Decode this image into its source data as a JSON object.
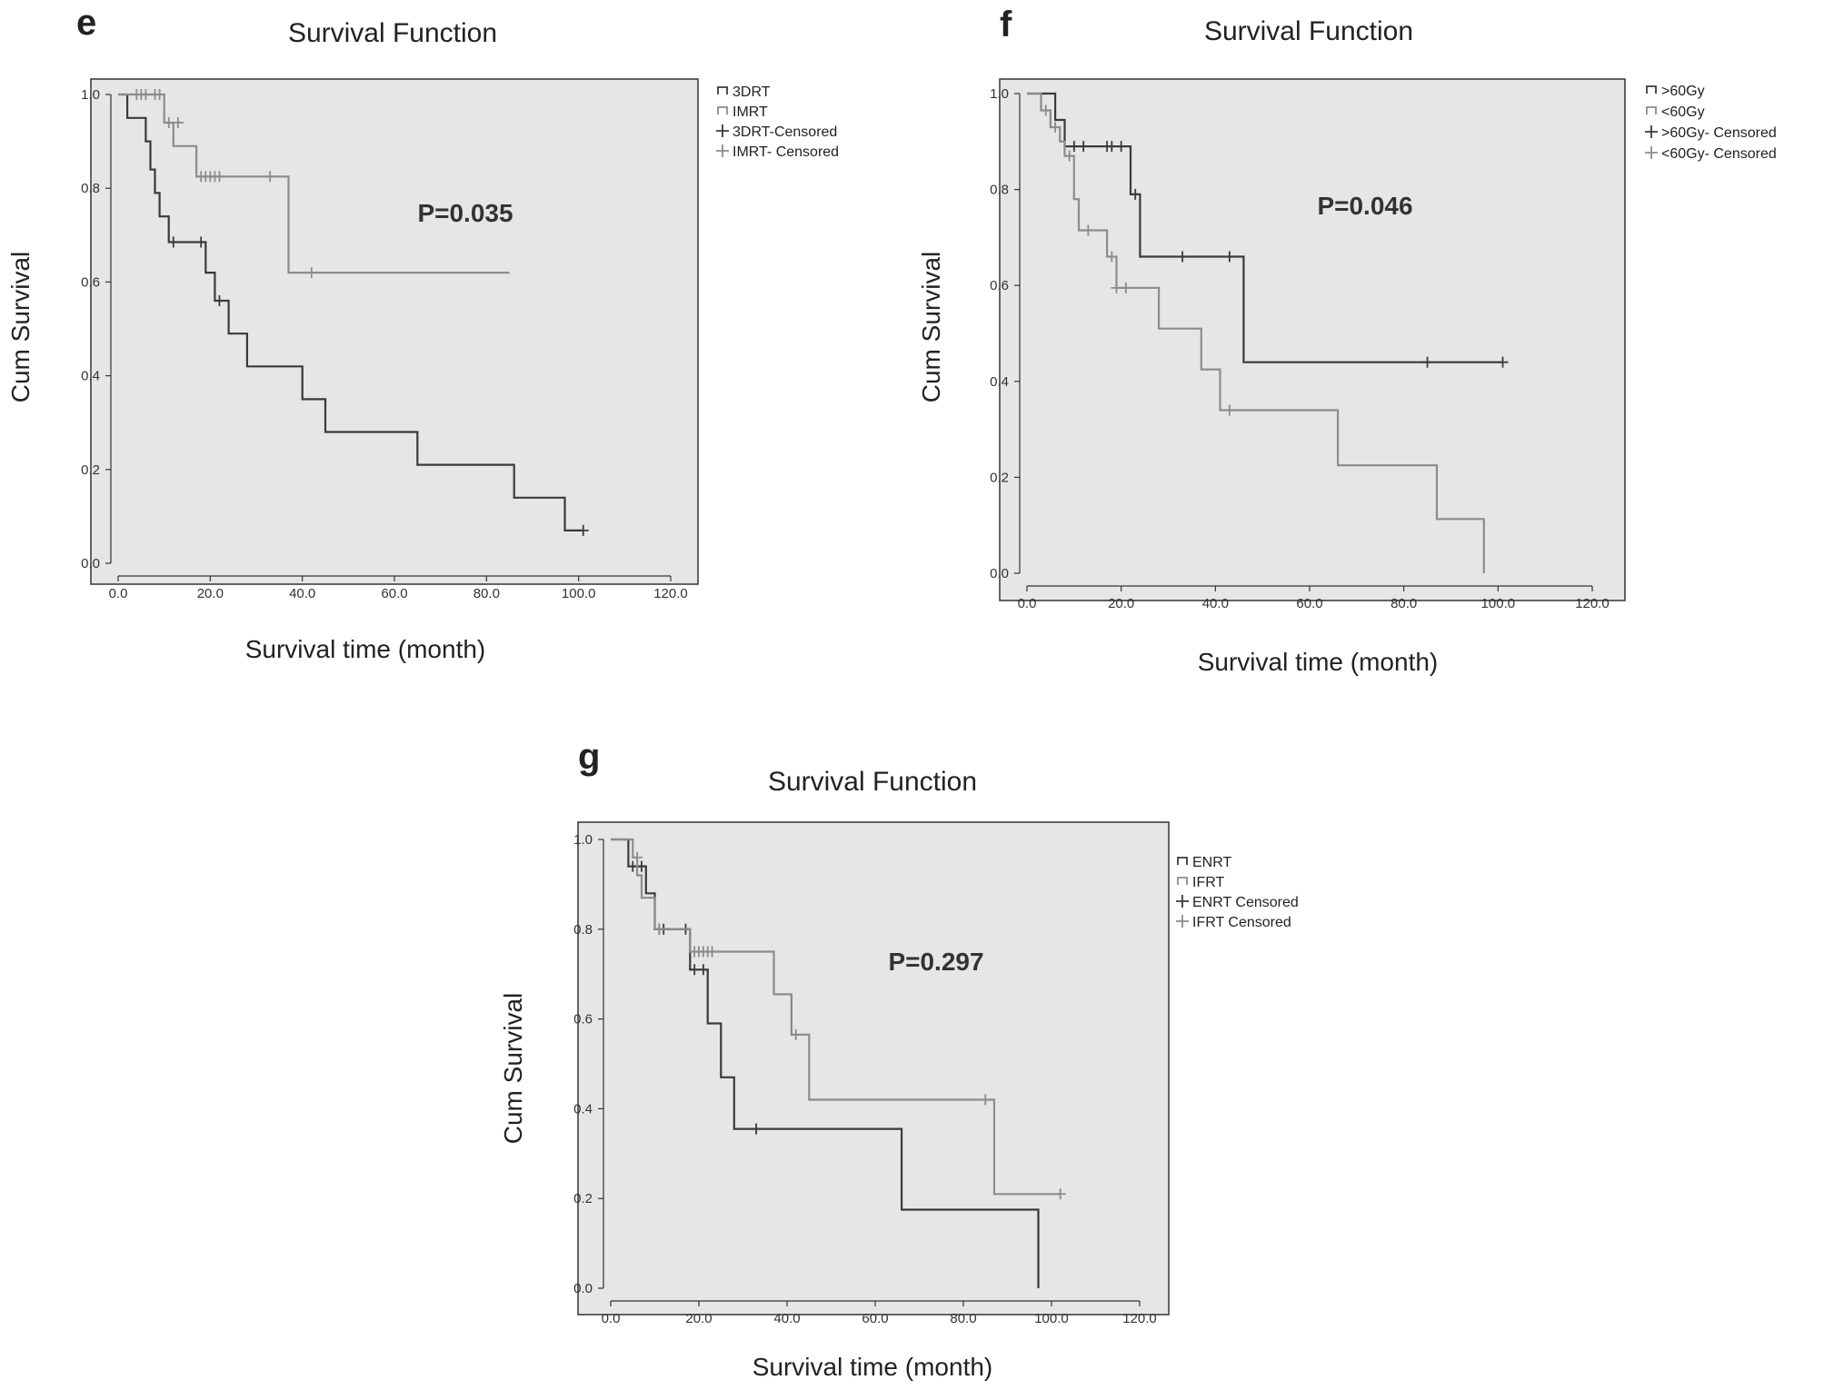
{
  "chart_data": [
    {
      "type": "line",
      "subtype": "kaplan-meier",
      "panel_label": "e",
      "title": "Survival Function",
      "xlabel": "Survival time (month)",
      "ylabel": "Cum Survival",
      "xlim": [
        0,
        120
      ],
      "ylim": [
        0,
        1
      ],
      "x_ticks": [
        "0.0",
        "20.0",
        "40.0",
        "60.0",
        "80.0",
        "100.0",
        "120.0"
      ],
      "y_ticks": [
        "0.0",
        "0.2",
        "0.4",
        "0.6",
        "0.8",
        "1.0"
      ],
      "annotation": "P=0.035",
      "legend": [
        "3DRT",
        "IMRT",
        "3DRT-Censored",
        "IMRT- Censored"
      ],
      "series": [
        {
          "name": "3DRT",
          "color": "#3a3a3a",
          "steps": [
            [
              0,
              1.0
            ],
            [
              2,
              1.0
            ],
            [
              2,
              0.95
            ],
            [
              6,
              0.95
            ],
            [
              6,
              0.9
            ],
            [
              7,
              0.9
            ],
            [
              7,
              0.84
            ],
            [
              8,
              0.84
            ],
            [
              8,
              0.79
            ],
            [
              9,
              0.79
            ],
            [
              9,
              0.74
            ],
            [
              11,
              0.74
            ],
            [
              11,
              0.685
            ],
            [
              19,
              0.685
            ],
            [
              19,
              0.62
            ],
            [
              21,
              0.62
            ],
            [
              21,
              0.56
            ],
            [
              24,
              0.56
            ],
            [
              24,
              0.49
            ],
            [
              28,
              0.49
            ],
            [
              28,
              0.42
            ],
            [
              40,
              0.42
            ],
            [
              40,
              0.35
            ],
            [
              45,
              0.35
            ],
            [
              45,
              0.28
            ],
            [
              65,
              0.28
            ],
            [
              65,
              0.21
            ],
            [
              86,
              0.21
            ],
            [
              86,
              0.14
            ],
            [
              97,
              0.14
            ],
            [
              97,
              0.07
            ],
            [
              101,
              0.07
            ]
          ],
          "censored": [
            [
              12,
              0.685
            ],
            [
              18,
              0.685
            ],
            [
              22,
              0.56
            ],
            [
              101,
              0.07
            ]
          ]
        },
        {
          "name": "IMRT",
          "color": "#8c8c8c",
          "steps": [
            [
              0,
              1.0
            ],
            [
              10,
              1.0
            ],
            [
              10,
              0.94
            ],
            [
              12,
              0.94
            ],
            [
              12,
              0.89
            ],
            [
              17,
              0.89
            ],
            [
              17,
              0.825
            ],
            [
              37,
              0.825
            ],
            [
              37,
              0.62
            ],
            [
              85,
              0.62
            ]
          ],
          "censored": [
            [
              4,
              1.0
            ],
            [
              5,
              1.0
            ],
            [
              6,
              1.0
            ],
            [
              8,
              1.0
            ],
            [
              9,
              1.0
            ],
            [
              11,
              0.94
            ],
            [
              13,
              0.94
            ],
            [
              18,
              0.825
            ],
            [
              19,
              0.825
            ],
            [
              20,
              0.825
            ],
            [
              21,
              0.825
            ],
            [
              22,
              0.825
            ],
            [
              33,
              0.825
            ],
            [
              42,
              0.62
            ]
          ]
        }
      ]
    },
    {
      "type": "line",
      "subtype": "kaplan-meier",
      "panel_label": "f",
      "title": "Survival Function",
      "xlabel": "Survival time (month)",
      "ylabel": "Cum Survival",
      "xlim": [
        0,
        120
      ],
      "ylim": [
        0,
        1
      ],
      "x_ticks": [
        "0.0",
        "20.0",
        "40.0",
        "60.0",
        "80.0",
        "100.0",
        "120.0"
      ],
      "y_ticks": [
        "0.0",
        "0.2",
        "0.4",
        "0.6",
        "0.8",
        "1.0"
      ],
      "annotation": "P=0.046",
      "legend": [
        ">60Gy",
        "<60Gy",
        ">60Gy- Censored",
        "<60Gy- Censored"
      ],
      "series": [
        {
          "name": ">60Gy",
          "color": "#3a3a3a",
          "steps": [
            [
              0,
              1.0
            ],
            [
              6,
              1.0
            ],
            [
              6,
              0.945
            ],
            [
              8,
              0.945
            ],
            [
              8,
              0.89
            ],
            [
              22,
              0.89
            ],
            [
              22,
              0.79
            ],
            [
              24,
              0.79
            ],
            [
              24,
              0.66
            ],
            [
              46,
              0.66
            ],
            [
              46,
              0.44
            ],
            [
              101,
              0.44
            ]
          ],
          "censored": [
            [
              10,
              0.89
            ],
            [
              12,
              0.89
            ],
            [
              17,
              0.89
            ],
            [
              18,
              0.89
            ],
            [
              20,
              0.89
            ],
            [
              23,
              0.79
            ],
            [
              33,
              0.66
            ],
            [
              43,
              0.66
            ],
            [
              85,
              0.44
            ],
            [
              101,
              0.44
            ]
          ]
        },
        {
          "name": "<60Gy",
          "color": "#8c8c8c",
          "steps": [
            [
              0,
              1.0
            ],
            [
              3,
              1.0
            ],
            [
              3,
              0.965
            ],
            [
              5,
              0.965
            ],
            [
              5,
              0.93
            ],
            [
              7,
              0.93
            ],
            [
              7,
              0.9
            ],
            [
              8,
              0.9
            ],
            [
              8,
              0.87
            ],
            [
              10,
              0.87
            ],
            [
              10,
              0.78
            ],
            [
              11,
              0.78
            ],
            [
              11,
              0.715
            ],
            [
              17,
              0.715
            ],
            [
              17,
              0.66
            ],
            [
              19,
              0.66
            ],
            [
              19,
              0.595
            ],
            [
              28,
              0.595
            ],
            [
              28,
              0.51
            ],
            [
              37,
              0.51
            ],
            [
              37,
              0.425
            ],
            [
              41,
              0.425
            ],
            [
              41,
              0.34
            ],
            [
              66,
              0.34
            ],
            [
              66,
              0.225
            ],
            [
              87,
              0.225
            ],
            [
              87,
              0.113
            ],
            [
              97,
              0.113
            ],
            [
              97,
              0.0
            ]
          ],
          "censored": [
            [
              4,
              0.965
            ],
            [
              6,
              0.93
            ],
            [
              9,
              0.87
            ],
            [
              13,
              0.715
            ],
            [
              18,
              0.66
            ],
            [
              19,
              0.595
            ],
            [
              21,
              0.595
            ],
            [
              43,
              0.34
            ]
          ]
        }
      ]
    },
    {
      "type": "line",
      "subtype": "kaplan-meier",
      "panel_label": "g",
      "title": "Survival Function",
      "xlabel": "Survival time (month)",
      "ylabel": "Cum Survival",
      "xlim": [
        0,
        120
      ],
      "ylim": [
        0,
        1
      ],
      "x_ticks": [
        "0.0",
        "20.0",
        "40.0",
        "60.0",
        "80.0",
        "100.0",
        "120.0"
      ],
      "y_ticks": [
        "0.0",
        "0.2",
        "0.4",
        "0.6",
        "0.8",
        "1.0"
      ],
      "annotation": "P=0.297",
      "legend": [
        "ENRT",
        "IFRT",
        "ENRT Censored",
        "IFRT Censored"
      ],
      "series": [
        {
          "name": "ENRT",
          "color": "#3a3a3a",
          "steps": [
            [
              0,
              1.0
            ],
            [
              4,
              1.0
            ],
            [
              4,
              0.94
            ],
            [
              8,
              0.94
            ],
            [
              8,
              0.88
            ],
            [
              10,
              0.88
            ],
            [
              10,
              0.8
            ],
            [
              18,
              0.8
            ],
            [
              18,
              0.71
            ],
            [
              22,
              0.71
            ],
            [
              22,
              0.59
            ],
            [
              25,
              0.59
            ],
            [
              25,
              0.47
            ],
            [
              28,
              0.47
            ],
            [
              28,
              0.355
            ],
            [
              66,
              0.355
            ],
            [
              66,
              0.175
            ],
            [
              97,
              0.175
            ],
            [
              97,
              0.0
            ]
          ],
          "censored": [
            [
              5,
              0.94
            ],
            [
              7,
              0.94
            ],
            [
              11,
              0.8
            ],
            [
              12,
              0.8
            ],
            [
              17,
              0.8
            ],
            [
              19,
              0.71
            ],
            [
              21,
              0.71
            ],
            [
              33,
              0.355
            ]
          ]
        },
        {
          "name": "IFRT",
          "color": "#8c8c8c",
          "steps": [
            [
              0,
              1.0
            ],
            [
              5,
              1.0
            ],
            [
              5,
              0.96
            ],
            [
              6,
              0.96
            ],
            [
              6,
              0.92
            ],
            [
              7,
              0.92
            ],
            [
              7,
              0.87
            ],
            [
              10,
              0.87
            ],
            [
              10,
              0.8
            ],
            [
              18,
              0.8
            ],
            [
              18,
              0.75
            ],
            [
              37,
              0.75
            ],
            [
              37,
              0.655
            ],
            [
              41,
              0.655
            ],
            [
              41,
              0.565
            ],
            [
              45,
              0.565
            ],
            [
              45,
              0.42
            ],
            [
              87,
              0.42
            ],
            [
              87,
              0.21
            ],
            [
              102,
              0.21
            ]
          ],
          "censored": [
            [
              6,
              0.96
            ],
            [
              11,
              0.8
            ],
            [
              19,
              0.75
            ],
            [
              20,
              0.75
            ],
            [
              21,
              0.75
            ],
            [
              22,
              0.75
            ],
            [
              23,
              0.75
            ],
            [
              42,
              0.565
            ],
            [
              85,
              0.42
            ],
            [
              102,
              0.21
            ]
          ]
        }
      ]
    }
  ]
}
